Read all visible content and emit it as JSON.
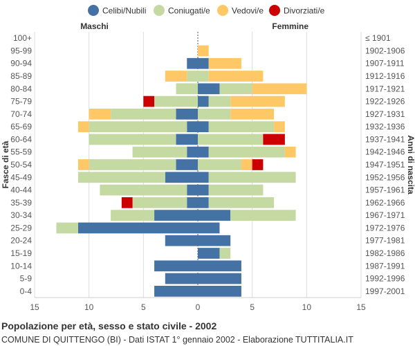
{
  "chart_data": {
    "type": "bar",
    "orientation": "horizontal-population-pyramid",
    "title": "Popolazione per età, sesso e stato civile - 2002",
    "subtitle": "COMUNE DI QUITTENGO (BI) - Dati ISTAT 1° gennaio 2002 - Elaborazione TUTTITALIA.IT",
    "left_label": "Maschi",
    "right_label": "Femmine",
    "ylabel_left": "Fasce di età",
    "ylabel_right": "Anni di nascita",
    "xlim": [
      -15,
      15
    ],
    "xticks": [
      15,
      10,
      5,
      0,
      5,
      10,
      15
    ],
    "legend": [
      {
        "name": "Celibi/Nubili",
        "color": "#4472a4"
      },
      {
        "name": "Coniugati/e",
        "color": "#c5d9a3"
      },
      {
        "name": "Vedovi/e",
        "color": "#ffc866"
      },
      {
        "name": "Divorziati/e",
        "color": "#cc0000"
      }
    ],
    "age_groups": [
      "100+",
      "95-99",
      "90-94",
      "85-89",
      "80-84",
      "75-79",
      "70-74",
      "65-69",
      "60-64",
      "55-59",
      "50-54",
      "45-49",
      "40-44",
      "35-39",
      "30-34",
      "25-29",
      "20-24",
      "15-19",
      "10-14",
      "5-9",
      "0-4"
    ],
    "birth_years": [
      "≤ 1901",
      "1902-1906",
      "1907-1911",
      "1912-1916",
      "1917-1921",
      "1922-1926",
      "1927-1931",
      "1932-1936",
      "1937-1941",
      "1942-1946",
      "1947-1951",
      "1952-1956",
      "1957-1961",
      "1962-1966",
      "1967-1971",
      "1972-1976",
      "1977-1981",
      "1982-1986",
      "1987-1991",
      "1992-1996",
      "1997-2001"
    ],
    "males": {
      "Celibi/Nubili": [
        0,
        0,
        1,
        0,
        0,
        0,
        2,
        1,
        2,
        1,
        2,
        3,
        1,
        1,
        4,
        11,
        3,
        0,
        4,
        3,
        4
      ],
      "Coniugati/e": [
        0,
        0,
        0,
        1,
        2,
        4,
        6,
        9,
        8,
        5,
        8,
        8,
        8,
        5,
        4,
        2,
        0,
        0,
        0,
        0,
        0
      ],
      "Vedovi/e": [
        0,
        0,
        0,
        2,
        0,
        0,
        2,
        1,
        0,
        0,
        1,
        0,
        0,
        0,
        0,
        0,
        0,
        0,
        0,
        0,
        0
      ],
      "Divorziati/e": [
        0,
        0,
        0,
        0,
        0,
        1,
        0,
        0,
        0,
        0,
        0,
        0,
        0,
        1,
        0,
        0,
        0,
        0,
        0,
        0,
        0
      ]
    },
    "females": {
      "Celibi/Nubili": [
        0,
        0,
        1,
        0,
        2,
        1,
        0,
        1,
        0,
        1,
        0,
        1,
        1,
        1,
        3,
        2,
        3,
        2,
        4,
        4,
        4
      ],
      "Coniugati/e": [
        0,
        0,
        0,
        1,
        3,
        2,
        3,
        6,
        6,
        7,
        4,
        8,
        5,
        6,
        6,
        0,
        0,
        1,
        0,
        0,
        0
      ],
      "Vedovi/e": [
        0,
        1,
        3,
        5,
        5,
        5,
        4,
        1,
        0,
        1,
        1,
        0,
        0,
        0,
        0,
        0,
        0,
        0,
        0,
        0,
        0
      ],
      "Divorziati/e": [
        0,
        0,
        0,
        0,
        0,
        0,
        0,
        0,
        2,
        0,
        1,
        0,
        0,
        0,
        0,
        0,
        0,
        0,
        0,
        0,
        0
      ]
    }
  }
}
